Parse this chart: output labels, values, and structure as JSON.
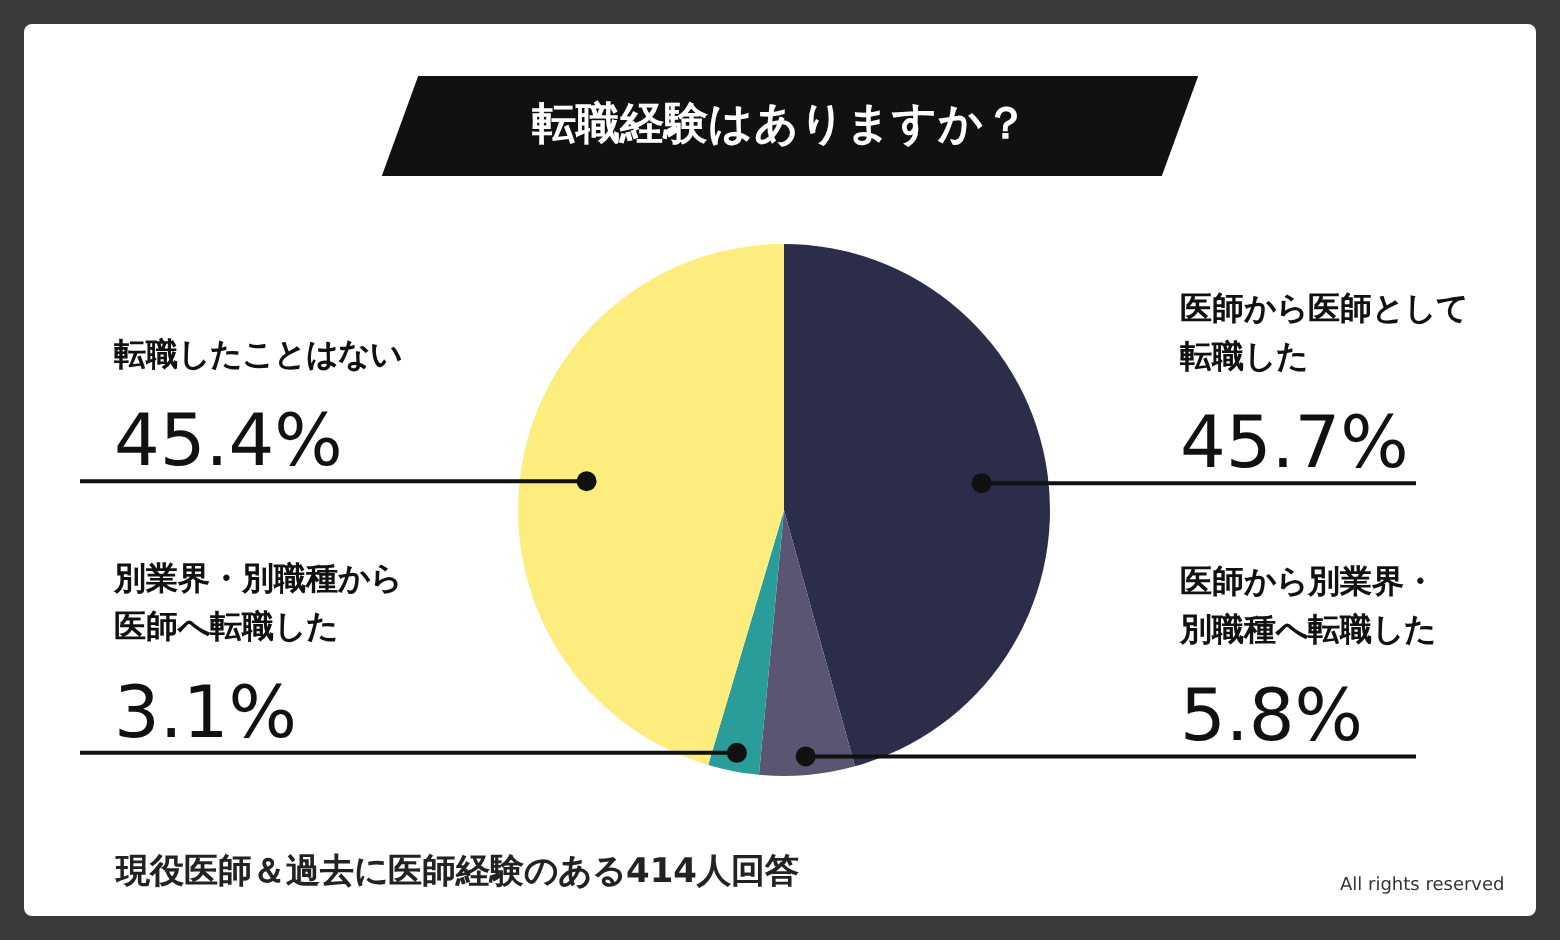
{
  "chart_data": {
    "type": "pie",
    "title": "転職経験はありますか？",
    "categories": [
      "医師から医師として転職した",
      "医師から別業界・別職種へ転職した",
      "別業界・別職種から医師へ転職した",
      "転職したことはない"
    ],
    "values": [
      45.7,
      5.8,
      3.1,
      45.4
    ],
    "colors": [
      "#2b2d4a",
      "#5a5570",
      "#2a9d9b",
      "#fdec7e"
    ],
    "value_labels": [
      "45.7%",
      "5.8%",
      "3.1%",
      "45.4%"
    ],
    "annotations": [
      "現役医師＆過去に医師経験のある414人回答",
      "All rights reserved"
    ]
  }
}
